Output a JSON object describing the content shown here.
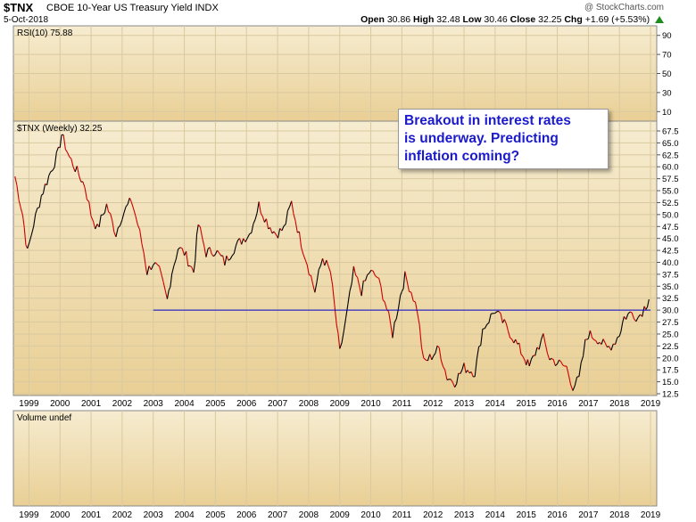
{
  "header": {
    "symbol": "$TNX",
    "description": "CBOE 10-Year US Treasury Yield INDX",
    "copyright": "@ StockCharts.com",
    "date": "5-Oct-2018",
    "open_label": "Open",
    "open": "30.86",
    "high_label": "High",
    "high": "32.48",
    "low_label": "Low",
    "low": "30.46",
    "close_label": "Close",
    "close": "32.25",
    "chg_label": "Chg",
    "chg": "+1.69 (+5.53%)",
    "colors": {
      "up_arrow": "#1e8c1e",
      "annotation_text": "#1a1acc",
      "support_line": "#0000cc",
      "bar_up": "#000000",
      "bar_down": "#cc0000"
    }
  },
  "annotation": {
    "lines": [
      "Breakout in interest rates",
      "is underway. Predicting",
      "inflation coming?"
    ]
  },
  "chart_data": [
    {
      "type": "line",
      "panel": "RSI",
      "legend": "RSI(10) 75.88",
      "yticks": [
        "90",
        "70",
        "50",
        "30",
        "10"
      ],
      "ylim": [
        0,
        100
      ]
    },
    {
      "type": "line",
      "panel": "price",
      "legend": "$TNX (Weekly) 32.25",
      "yticks": [
        "67.5",
        "65.0",
        "62.5",
        "60.0",
        "57.5",
        "55.0",
        "52.5",
        "50.0",
        "47.5",
        "45.0",
        "42.5",
        "40.0",
        "37.5",
        "35.0",
        "32.5",
        "30.0",
        "27.5",
        "25.0",
        "22.5",
        "20.0",
        "17.5",
        "15.0",
        "12.5"
      ],
      "ylim": [
        12.5,
        67.5
      ],
      "xticks": [
        "1999",
        "2000",
        "2001",
        "2002",
        "2003",
        "2004",
        "2005",
        "2006",
        "2007",
        "2008",
        "2009",
        "2010",
        "2011",
        "2012",
        "2013",
        "2014",
        "2015",
        "2016",
        "2017",
        "2018",
        "2019"
      ],
      "series": [
        {
          "values": [
            [
              1998.55,
              58.0
            ],
            [
              1998.8,
              50.0
            ],
            [
              1998.95,
              42.0
            ],
            [
              1999.15,
              48.0
            ],
            [
              1999.4,
              54.0
            ],
            [
              1999.7,
              59.0
            ],
            [
              1999.95,
              63.0
            ],
            [
              2000.05,
              66.8
            ],
            [
              2000.3,
              62.0
            ],
            [
              2000.55,
              59.0
            ],
            [
              2000.8,
              56.0
            ],
            [
              2001.0,
              50.0
            ],
            [
              2001.2,
              47.0
            ],
            [
              2001.5,
              52.0
            ],
            [
              2001.8,
              46.0
            ],
            [
              2002.0,
              50.0
            ],
            [
              2002.3,
              53.0
            ],
            [
              2002.5,
              48.0
            ],
            [
              2002.7,
              42.0
            ],
            [
              2002.8,
              38.0
            ],
            [
              2003.0,
              40.0
            ],
            [
              2003.2,
              38.0
            ],
            [
              2003.45,
              32.0
            ],
            [
              2003.6,
              38.0
            ],
            [
              2003.8,
              43.0
            ],
            [
              2004.0,
              42.0
            ],
            [
              2004.3,
              38.0
            ],
            [
              2004.45,
              48.0
            ],
            [
              2004.7,
              42.0
            ],
            [
              2005.0,
              42.5
            ],
            [
              2005.3,
              40.0
            ],
            [
              2005.6,
              43.0
            ],
            [
              2005.9,
              45.0
            ],
            [
              2006.1,
              46.0
            ],
            [
              2006.4,
              52.0
            ],
            [
              2006.7,
              48.0
            ],
            [
              2006.95,
              46.0
            ],
            [
              2007.2,
              47.0
            ],
            [
              2007.45,
              52.5
            ],
            [
              2007.7,
              45.5
            ],
            [
              2007.95,
              40.0
            ],
            [
              2008.2,
              34.0
            ],
            [
              2008.45,
              41.0
            ],
            [
              2008.7,
              38.0
            ],
            [
              2008.9,
              27.0
            ],
            [
              2009.0,
              21.0
            ],
            [
              2009.2,
              28.0
            ],
            [
              2009.45,
              38.0
            ],
            [
              2009.7,
              34.0
            ],
            [
              2009.95,
              38.0
            ],
            [
              2010.2,
              37.0
            ],
            [
              2010.45,
              32.0
            ],
            [
              2010.7,
              25.0
            ],
            [
              2010.95,
              33.0
            ],
            [
              2011.1,
              37.0
            ],
            [
              2011.3,
              34.0
            ],
            [
              2011.5,
              30.0
            ],
            [
              2011.7,
              19.0
            ],
            [
              2011.9,
              20.0
            ],
            [
              2012.2,
              22.0
            ],
            [
              2012.45,
              16.0
            ],
            [
              2012.7,
              15.0
            ],
            [
              2013.0,
              18.0
            ],
            [
              2013.35,
              17.0
            ],
            [
              2013.6,
              26.0
            ],
            [
              2013.8,
              28.0
            ],
            [
              2014.0,
              30.0
            ],
            [
              2014.3,
              27.0
            ],
            [
              2014.6,
              24.0
            ],
            [
              2014.95,
              20.0
            ],
            [
              2015.1,
              18.0
            ],
            [
              2015.35,
              22.0
            ],
            [
              2015.55,
              24.0
            ],
            [
              2015.75,
              20.0
            ],
            [
              2016.0,
              19.0
            ],
            [
              2016.3,
              18.0
            ],
            [
              2016.5,
              14.0
            ],
            [
              2016.7,
              15.5
            ],
            [
              2016.9,
              23.0
            ],
            [
              2017.0,
              25.0
            ],
            [
              2017.3,
              24.0
            ],
            [
              2017.6,
              22.0
            ],
            [
              2017.8,
              23.0
            ],
            [
              2018.0,
              25.0
            ],
            [
              2018.15,
              28.5
            ],
            [
              2018.4,
              29.5
            ],
            [
              2018.6,
              28.5
            ],
            [
              2018.8,
              30.5
            ],
            [
              2018.95,
              32.25
            ]
          ]
        }
      ],
      "support_line": {
        "from": [
          2003.0,
          30.0
        ],
        "to": [
          2019.0,
          30.0
        ]
      }
    },
    {
      "type": "bar",
      "panel": "volume",
      "legend": "Volume undef",
      "xticks": [
        "1999",
        "2000",
        "2001",
        "2002",
        "2003",
        "2004",
        "2005",
        "2006",
        "2007",
        "2008",
        "2009",
        "2010",
        "2011",
        "2012",
        "2013",
        "2014",
        "2015",
        "2016",
        "2017",
        "2018",
        "2019"
      ]
    }
  ]
}
